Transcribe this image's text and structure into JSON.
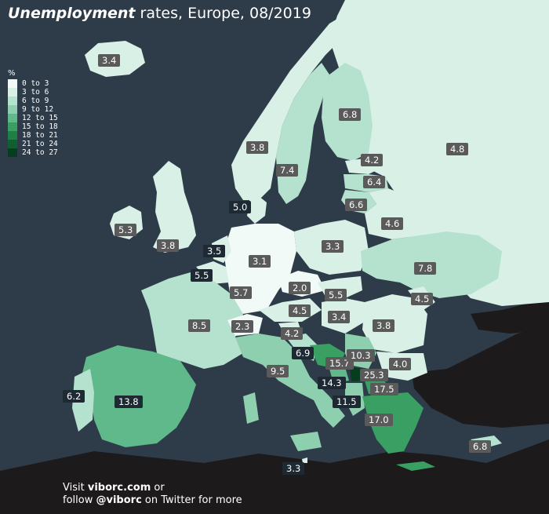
{
  "title": {
    "bold": "Unemployment",
    "rest": "rates, Europe, 08/2019"
  },
  "legend": {
    "unit": "%",
    "items": [
      {
        "label": "0 to 3",
        "color": "#f1faf6"
      },
      {
        "label": "3 to 6",
        "color": "#d9f0e7"
      },
      {
        "label": "6 to 9",
        "color": "#b5e2cf"
      },
      {
        "label": "9 to 12",
        "color": "#8ecfb0"
      },
      {
        "label": "12 to 15",
        "color": "#5fb98a"
      },
      {
        "label": "15 to 18",
        "color": "#3a9f63"
      },
      {
        "label": "18 to 21",
        "color": "#1f7f45"
      },
      {
        "label": "21 to 24",
        "color": "#0f5f30"
      },
      {
        "label": "24 to 27",
        "color": "#063d1f"
      }
    ]
  },
  "countries": [
    {
      "name": "Iceland",
      "value": "3.4"
    },
    {
      "name": "Norway",
      "value": "3.8"
    },
    {
      "name": "Sweden",
      "value": "7.4"
    },
    {
      "name": "Finland",
      "value": "6.8"
    },
    {
      "name": "Russia",
      "value": "4.8"
    },
    {
      "name": "Estonia",
      "value": "4.2"
    },
    {
      "name": "Latvia",
      "value": "6.4"
    },
    {
      "name": "Lithuania",
      "value": "6.6"
    },
    {
      "name": "Denmark",
      "value": "5.0"
    },
    {
      "name": "Belarus",
      "value": "4.6"
    },
    {
      "name": "Ireland",
      "value": "5.3"
    },
    {
      "name": "United Kingdom",
      "value": "3.8"
    },
    {
      "name": "Netherlands",
      "value": "3.5"
    },
    {
      "name": "Germany",
      "value": "3.1"
    },
    {
      "name": "Poland",
      "value": "3.3"
    },
    {
      "name": "Ukraine",
      "value": "7.8"
    },
    {
      "name": "Belgium",
      "value": "5.5"
    },
    {
      "name": "Luxembourg",
      "value": "5.7"
    },
    {
      "name": "Czechia",
      "value": "2.0"
    },
    {
      "name": "Slovakia",
      "value": "5.5"
    },
    {
      "name": "Moldova",
      "value": "4.5"
    },
    {
      "name": "Austria",
      "value": "4.5"
    },
    {
      "name": "Hungary",
      "value": "3.4"
    },
    {
      "name": "France",
      "value": "8.5"
    },
    {
      "name": "Switzerland",
      "value": "2.3"
    },
    {
      "name": "Slovenia",
      "value": "4.2"
    },
    {
      "name": "Romania",
      "value": "3.8"
    },
    {
      "name": "Croatia",
      "value": "6.9"
    },
    {
      "name": "Bosnia and Herzegovina",
      "value": "15.7"
    },
    {
      "name": "Serbia",
      "value": "10.3"
    },
    {
      "name": "Bulgaria",
      "value": "4.0"
    },
    {
      "name": "Italy",
      "value": "9.5"
    },
    {
      "name": "Kosovo",
      "value": "25.3"
    },
    {
      "name": "Montenegro",
      "value": "14.3"
    },
    {
      "name": "North Macedonia",
      "value": "17.5"
    },
    {
      "name": "Albania",
      "value": "11.5"
    },
    {
      "name": "Portugal",
      "value": "6.2"
    },
    {
      "name": "Spain",
      "value": "13.8"
    },
    {
      "name": "Greece",
      "value": "17.0"
    },
    {
      "name": "Cyprus",
      "value": "6.8"
    },
    {
      "name": "Malta",
      "value": "3.3"
    }
  ],
  "footer": {
    "visit": "Visit",
    "site": "viborc.com",
    "or": "or",
    "follow": "follow",
    "handle": "@viborc",
    "rest": "on Twitter for more"
  }
}
